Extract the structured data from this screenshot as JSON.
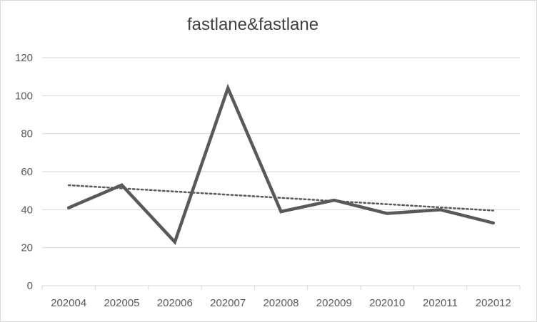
{
  "chart_data": {
    "type": "line",
    "title": "fastlane&fastlane",
    "xlabel": "",
    "ylabel": "",
    "categories": [
      "202004",
      "202005",
      "202006",
      "202007",
      "202008",
      "202009",
      "202010",
      "202011",
      "202012"
    ],
    "series": [
      {
        "values": [
          41,
          53,
          23,
          104,
          39,
          45,
          38,
          40,
          33
        ],
        "color": "#595959"
      }
    ],
    "trendline": {
      "type": "linear",
      "style": "dotted",
      "color": "#595959"
    },
    "ylim": [
      0,
      120
    ],
    "yticks": [
      0,
      20,
      40,
      60,
      80,
      100,
      120
    ],
    "grid": "horizontal",
    "legend": "none",
    "colors": {
      "grid": "#d9d9d9",
      "axis": "#d9d9d9",
      "tick_text": "#595959",
      "title_text": "#404040"
    }
  }
}
